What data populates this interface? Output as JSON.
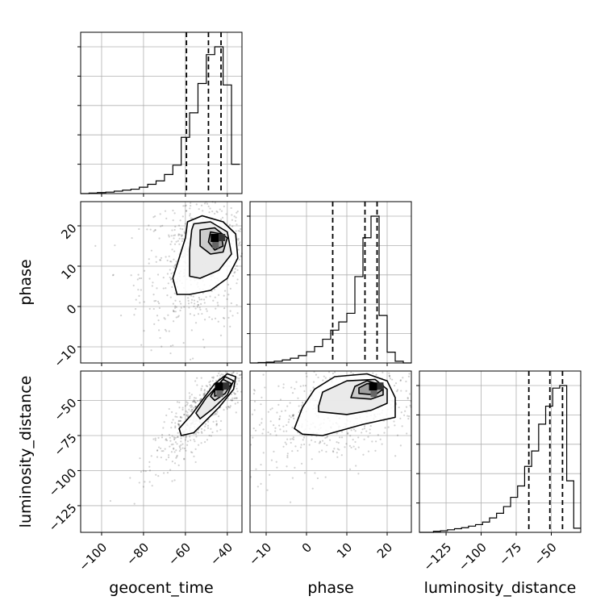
{
  "chart_data": {
    "type": "corner",
    "parameters": [
      "geocent_time",
      "phase",
      "luminosity_distance"
    ],
    "grid": true,
    "ranges": {
      "geocent_time": [
        -110,
        -33
      ],
      "phase": [
        -14,
        26
      ],
      "luminosity_distance": [
        -144,
        -29
      ]
    },
    "ticks": {
      "geocent_time": {
        "values": [
          -100,
          -80,
          -60,
          -40
        ],
        "labels": [
          "−100",
          "−80",
          "−60",
          "−40"
        ]
      },
      "phase": {
        "values": [
          -10,
          0,
          10,
          20
        ],
        "labels": [
          "−10",
          "0",
          "10",
          "20"
        ]
      },
      "luminosity_distance": {
        "values": [
          -125,
          -100,
          -75,
          -50
        ],
        "labels": [
          "−125",
          "−100",
          "−75",
          "−50"
        ]
      }
    },
    "quantile_lines": {
      "geocent_time": [
        -59.5,
        -49,
        -43
      ],
      "phase": [
        6.5,
        14.5,
        17.5
      ],
      "luminosity_distance": [
        -66,
        -51,
        -42
      ]
    },
    "histograms": [
      {
        "parameter": "geocent_time",
        "edges": [
          -110,
          -106,
          -102,
          -98,
          -94,
          -90,
          -86,
          -82,
          -78,
          -74,
          -70,
          -66,
          -62,
          -58,
          -54,
          -50,
          -46,
          -42,
          -38,
          -34
        ],
        "counts": [
          0,
          1,
          2,
          3,
          5,
          7,
          9,
          13,
          19,
          26,
          39,
          58,
          115,
          165,
          225,
          284,
          300,
          222,
          60
        ]
      },
      {
        "parameter": "phase",
        "edges": [
          -14,
          -12,
          -10,
          -8,
          -6,
          -4,
          -2,
          0,
          2,
          4,
          6,
          8,
          10,
          12,
          14,
          16,
          18,
          20,
          22,
          24,
          26
        ],
        "counts": [
          0,
          1,
          2,
          4,
          7,
          11,
          17,
          26,
          38,
          55,
          76,
          95,
          115,
          200,
          290,
          340,
          110,
          25,
          4,
          0
        ]
      },
      {
        "parameter": "luminosity_distance",
        "edges": [
          -144,
          -139,
          -134,
          -129,
          -124,
          -119,
          -114,
          -109,
          -104,
          -99,
          -94,
          -89,
          -84,
          -79,
          -74,
          -69,
          -64,
          -59,
          -54,
          -49,
          -44,
          -39,
          -34,
          -29
        ],
        "counts": [
          0,
          0,
          2,
          3,
          5,
          7,
          9,
          12,
          15,
          20,
          28,
          37,
          50,
          68,
          90,
          128,
          158,
          210,
          245,
          280,
          285,
          100,
          8
        ]
      }
    ],
    "density_panels": [
      {
        "x": "geocent_time",
        "y": "phase",
        "peak": [
          -46,
          17
        ],
        "contours": [
          [
            [
              -59,
              21
            ],
            [
              -52,
              22.5
            ],
            [
              -42,
              21
            ],
            [
              -36,
              18
            ],
            [
              -35,
              12
            ],
            [
              -40,
              7
            ],
            [
              -48,
              4
            ],
            [
              -58,
              3
            ],
            [
              -64,
              3
            ],
            [
              -66,
              7
            ],
            [
              -63,
              12
            ],
            [
              -60,
              17
            ]
          ],
          [
            [
              -56,
              20.5
            ],
            [
              -48,
              21
            ],
            [
              -40,
              18.5
            ],
            [
              -38,
              13
            ],
            [
              -44,
              9
            ],
            [
              -53,
              7
            ],
            [
              -58,
              7.5
            ],
            [
              -58,
              14
            ],
            [
              -57,
              19
            ]
          ],
          [
            [
              -53,
              19
            ],
            [
              -46,
              19.5
            ],
            [
              -40,
              17
            ],
            [
              -42,
              13.5
            ],
            [
              -48,
              13
            ],
            [
              -53,
              15
            ]
          ],
          [
            [
              -48,
              18.5
            ],
            [
              -43,
              18
            ],
            [
              -42,
              15
            ],
            [
              -46,
              14
            ],
            [
              -49,
              16
            ]
          ]
        ]
      },
      {
        "x": "geocent_time",
        "y": "luminosity_distance",
        "peak": [
          -44,
          -40
        ],
        "contours": [
          [
            [
              -40,
              -31
            ],
            [
              -36,
              -33
            ],
            [
              -37,
              -42
            ],
            [
              -44,
              -55
            ],
            [
              -52,
              -67
            ],
            [
              -56,
              -73
            ],
            [
              -62,
              -75
            ],
            [
              -63,
              -70
            ],
            [
              -57,
              -60
            ],
            [
              -51,
              -48
            ],
            [
              -46,
              -38
            ]
          ],
          [
            [
              -41,
              -33
            ],
            [
              -37,
              -36
            ],
            [
              -40,
              -46
            ],
            [
              -47,
              -56
            ],
            [
              -53,
              -63
            ],
            [
              -55,
              -59
            ],
            [
              -50,
              -48
            ],
            [
              -45,
              -40
            ]
          ],
          [
            [
              -42,
              -35
            ],
            [
              -38,
              -38
            ],
            [
              -41,
              -45
            ],
            [
              -46,
              -50
            ],
            [
              -48,
              -47
            ],
            [
              -45,
              -40
            ]
          ],
          [
            [
              -43,
              -37
            ],
            [
              -41,
              -40
            ],
            [
              -43,
              -45
            ],
            [
              -46,
              -47
            ],
            [
              -46,
              -42
            ]
          ]
        ]
      },
      {
        "x": "phase",
        "y": "luminosity_distance",
        "peak": [
          16.5,
          -40
        ],
        "contours": [
          [
            [
              -1,
              -74
            ],
            [
              4,
              -75
            ],
            [
              14,
              -67
            ],
            [
              22,
              -62
            ],
            [
              22,
              -48
            ],
            [
              20,
              -36
            ],
            [
              15,
              -31
            ],
            [
              7,
              -33
            ],
            [
              2,
              -42
            ],
            [
              -1,
              -55
            ],
            [
              -3,
              -70
            ]
          ],
          [
            [
              3,
              -58
            ],
            [
              10,
              -60
            ],
            [
              16,
              -57
            ],
            [
              20,
              -52
            ],
            [
              20,
              -42
            ],
            [
              17,
              -35
            ],
            [
              10,
              -36
            ],
            [
              4,
              -44
            ],
            [
              3,
              -54
            ]
          ],
          [
            [
              11,
              -48
            ],
            [
              16,
              -49
            ],
            [
              19,
              -46
            ],
            [
              19,
              -39
            ],
            [
              15,
              -36
            ],
            [
              12,
              -40
            ]
          ],
          [
            [
              13,
              -45
            ],
            [
              17,
              -46
            ],
            [
              19,
              -42
            ],
            [
              18,
              -38
            ],
            [
              15,
              -38
            ],
            [
              13,
              -41
            ]
          ]
        ]
      }
    ]
  }
}
